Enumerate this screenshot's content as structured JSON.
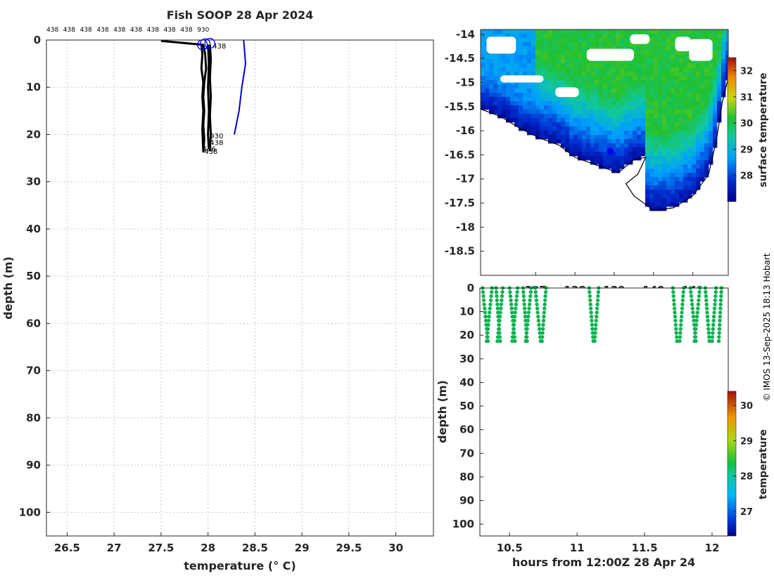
{
  "title": "Fish SOOP 28 Apr 2024",
  "credit": "© IMOS 13-Sep-2025 18:13 Hobart",
  "colors": {
    "profile": "#000000",
    "sst_line": "#0000d6",
    "marker": "#0000ff",
    "grid": "#c8c8c8",
    "land": "#ffffff",
    "scatter": "#10b050"
  },
  "chart_data": [
    {
      "id": "profile",
      "type": "line",
      "xlabel": "temperature (° C)",
      "ylabel": "depth (m)",
      "xlim": [
        26.28,
        30.4
      ],
      "ylim": [
        105,
        0
      ],
      "xticks": [
        26.5,
        27,
        27.5,
        28,
        28.5,
        29,
        29.5,
        30
      ],
      "yticks": [
        0,
        10,
        20,
        30,
        40,
        50,
        60,
        70,
        80,
        90,
        100
      ],
      "grid": true,
      "top_labels": [
        "438",
        "438",
        "438",
        "438",
        "438",
        "438",
        "438",
        "438",
        "438",
        "930"
      ],
      "annotations": [
        {
          "text": "438",
          "x": 28.05,
          "depth": 1.8
        },
        {
          "text": "930",
          "x": 28.02,
          "depth": 20.8
        },
        {
          "text": "438",
          "x": 28.02,
          "depth": 22.2
        },
        {
          "text": "436",
          "x": 27.94,
          "depth": 23.6
        },
        {
          "text": "438",
          "x": 27.96,
          "depth": 24.1
        }
      ],
      "series": [
        {
          "name": "cast-930",
          "x": [
            27.5,
            27.95,
            27.97,
            27.98,
            27.96,
            27.95,
            27.96,
            27.95,
            27.96,
            27.95
          ],
          "depth": [
            0.2,
            1,
            3,
            6,
            9,
            12,
            15,
            18,
            21,
            23.8
          ]
        },
        {
          "name": "cast-438a",
          "x": [
            27.93,
            27.94,
            27.93,
            27.95,
            27.94,
            27.95,
            27.94,
            27.95
          ],
          "depth": [
            1,
            3,
            6,
            9,
            12,
            15,
            19,
            23.5
          ]
        },
        {
          "name": "cast-438b",
          "x": [
            28.02,
            28.03,
            28.02,
            28.03,
            28.02,
            28.03,
            28.02
          ],
          "depth": [
            1,
            4,
            8,
            12,
            16,
            20,
            23.5
          ]
        },
        {
          "name": "cast-438c",
          "x": [
            28.0,
            28.01,
            28.0,
            28.01,
            28.0,
            28.01
          ],
          "depth": [
            1,
            5,
            10,
            15,
            20,
            23.2
          ]
        }
      ],
      "sst_line": {
        "x": [
          28.38,
          28.4,
          28.36,
          28.33,
          28.28
        ],
        "depth": [
          0,
          5,
          10,
          15,
          20
        ]
      },
      "surface_markers": [
        {
          "x": 27.94,
          "depth": 1
        },
        {
          "x": 27.97,
          "depth": 0.8
        },
        {
          "x": 28.02,
          "depth": 0.7
        }
      ]
    },
    {
      "id": "map",
      "type": "heatmap",
      "xlim": [
        135.6,
        141.9
      ],
      "ylim": [
        -19,
        -13.9
      ],
      "xticks": [
        137,
        138,
        139,
        140,
        141
      ],
      "yticks": [
        -14,
        -14.5,
        -15,
        -15.5,
        -16,
        -16.5,
        -17,
        -17.5,
        -18,
        -18.5
      ],
      "colorbar": {
        "label": "surface temperature",
        "min": 27.0,
        "max": 32.5,
        "ticks": [
          28,
          29,
          30,
          31,
          32
        ]
      },
      "ship_position": {
        "lon": 138.9,
        "lat": -16.43
      },
      "coast": [
        [
          135.6,
          -15.55
        ],
        [
          136.1,
          -15.7
        ],
        [
          136.6,
          -15.95
        ],
        [
          137.1,
          -16.15
        ],
        [
          137.6,
          -16.3
        ],
        [
          138.0,
          -16.55
        ],
        [
          138.5,
          -16.7
        ],
        [
          139.1,
          -16.87
        ],
        [
          139.5,
          -16.6
        ],
        [
          139.8,
          -16.55
        ],
        [
          139.6,
          -16.9
        ],
        [
          139.3,
          -17.1
        ],
        [
          139.5,
          -17.35
        ],
        [
          140.0,
          -17.65
        ],
        [
          140.5,
          -17.6
        ],
        [
          141.0,
          -17.35
        ],
        [
          141.4,
          -16.9
        ],
        [
          141.6,
          -16.2
        ],
        [
          141.75,
          -15.4
        ],
        [
          141.9,
          -14.9
        ]
      ],
      "cloud_patches": [
        {
          "lon": [
            135.75,
            136.5
          ],
          "lat": [
            -14.05,
            -14.4
          ]
        },
        {
          "lon": [
            136.1,
            137.2
          ],
          "lat": [
            -14.85,
            -15.0
          ]
        },
        {
          "lon": [
            137.5,
            138.1
          ],
          "lat": [
            -15.1,
            -15.3
          ]
        },
        {
          "lon": [
            138.3,
            139.5
          ],
          "lat": [
            -14.3,
            -14.55
          ]
        },
        {
          "lon": [
            139.4,
            139.9
          ],
          "lat": [
            -14.0,
            -14.2
          ]
        },
        {
          "lon": [
            140.9,
            141.5
          ],
          "lat": [
            -14.1,
            -14.55
          ]
        },
        {
          "lon": [
            140.55,
            140.95
          ],
          "lat": [
            -14.05,
            -14.35
          ]
        }
      ]
    },
    {
      "id": "timeseries",
      "type": "scatter",
      "xlabel": "hours from 12:00Z 28 Apr 24",
      "ylabel": "depth (m)",
      "xlim": [
        10.28,
        12.12
      ],
      "ylim": [
        105,
        0
      ],
      "xticks": [
        10.5,
        11,
        11.5,
        12
      ],
      "yticks": [
        0,
        10,
        20,
        30,
        40,
        50,
        60,
        70,
        80,
        90,
        100
      ],
      "colorbar": {
        "label": "temperature",
        "min": 26.3,
        "max": 30.4,
        "ticks": [
          27,
          28,
          29,
          30
        ]
      },
      "casts": [
        {
          "t0": 10.3,
          "t1": 10.34
        },
        {
          "t0": 10.37,
          "t1": 10.33
        },
        {
          "t0": 10.4,
          "t1": 10.43
        },
        {
          "t0": 10.45,
          "t1": 10.41
        },
        {
          "t0": 10.5,
          "t1": 10.54
        },
        {
          "t0": 10.56,
          "t1": 10.52
        },
        {
          "t0": 10.6,
          "t1": 10.63
        },
        {
          "t0": 10.66,
          "t1": 10.62
        },
        {
          "t0": 10.69,
          "t1": 10.73
        },
        {
          "t0": 10.77,
          "t1": 10.74
        },
        {
          "t0": 11.09,
          "t1": 11.12
        },
        {
          "t0": 11.16,
          "t1": 11.13
        },
        {
          "t0": 11.71,
          "t1": 11.74
        },
        {
          "t0": 11.79,
          "t1": 11.76
        },
        {
          "t0": 11.84,
          "t1": 11.88
        },
        {
          "t0": 11.91,
          "t1": 11.87
        },
        {
          "t0": 11.95,
          "t1": 11.98
        },
        {
          "t0": 12.03,
          "t1": 12.0
        },
        {
          "t0": 12.07,
          "t1": 12.05
        }
      ],
      "cast_max_depth": 22.5
    }
  ]
}
